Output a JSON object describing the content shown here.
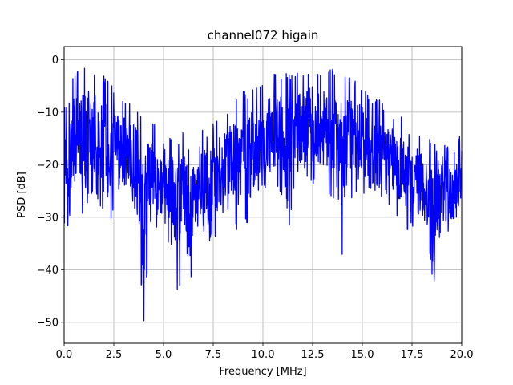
{
  "chart_data": {
    "type": "line",
    "title": "channel072 higain",
    "xlabel": "Frequency [MHz]",
    "ylabel": "PSD [dB]",
    "xlim": [
      0.0,
      20.0
    ],
    "ylim": [
      -54.0,
      2.5
    ],
    "grid": true,
    "series_color": "#0000ff",
    "x_ticks": [
      0.0,
      2.5,
      5.0,
      7.5,
      10.0,
      12.5,
      15.0,
      17.5,
      20.0
    ],
    "x_tick_labels": [
      "0.0",
      "2.5",
      "5.0",
      "7.5",
      "10.0",
      "12.5",
      "15.0",
      "17.5",
      "20.0"
    ],
    "y_ticks": [
      0,
      -10,
      -20,
      -30,
      -40,
      -50
    ],
    "y_tick_labels": [
      "0",
      "−10",
      "−20",
      "−30",
      "−40",
      "−50"
    ],
    "series": [
      {
        "x": [
          0.0,
          0.25,
          0.5,
          0.75,
          1.0,
          1.25,
          1.5,
          1.75,
          2.0,
          2.25,
          2.5,
          2.75,
          3.0,
          3.25,
          3.5,
          3.75,
          4.0,
          4.25,
          4.5,
          4.75,
          5.0,
          5.25,
          5.5,
          5.75,
          6.0,
          6.25,
          6.5,
          6.75,
          7.0,
          7.25,
          7.5,
          7.75,
          8.0,
          8.25,
          8.5,
          8.75,
          9.0,
          9.25,
          9.5,
          9.75,
          10.0,
          10.25,
          10.5,
          10.75,
          11.0,
          11.25,
          11.5,
          11.75,
          12.0,
          12.25,
          12.5,
          12.75,
          13.0,
          13.25,
          13.5,
          13.75,
          14.0,
          14.25,
          14.5,
          14.75,
          15.0,
          15.25,
          15.5,
          15.75,
          16.0,
          16.25,
          16.5,
          16.75,
          17.0,
          17.25,
          17.5,
          17.75,
          18.0,
          18.25,
          18.5,
          18.75,
          19.0,
          19.25,
          19.5,
          19.75,
          20.0
        ],
        "upper": [
          -9,
          -8,
          -2,
          -1.5,
          -1,
          -0.5,
          -2,
          -3,
          -3,
          -4,
          -5,
          -6,
          -7,
          -8,
          -8,
          -9,
          -10,
          -11,
          -12,
          -13,
          -13,
          -14,
          -15,
          -15,
          -13,
          -16,
          -14,
          -17,
          -12,
          -15,
          -12,
          -11,
          -10,
          -9,
          -8,
          -7,
          -6,
          -6,
          -5,
          -4,
          -4,
          -3.5,
          -3,
          -2,
          -3,
          -2.5,
          -3,
          -2,
          -2,
          -1.5,
          -1,
          -1.5,
          -2,
          -2.5,
          -1,
          -2,
          -3,
          -3,
          -4,
          -4,
          -5,
          -6,
          -7,
          -7,
          -8,
          -9,
          -10,
          -10,
          -11,
          -12,
          -14,
          -13,
          -14,
          -15,
          -15,
          -16,
          -15,
          -16,
          -18,
          -17,
          -12
        ],
        "lower": [
          -37,
          -30,
          -29,
          -25,
          -33,
          -25,
          -26,
          -27,
          -30,
          -34,
          -28,
          -32,
          -29,
          -27,
          -32,
          -35,
          -51,
          -37,
          -34,
          -38,
          -30,
          -36,
          -37,
          -47,
          -33,
          -46,
          -40,
          -31,
          -38,
          -35,
          -34,
          -33,
          -30,
          -29,
          -30,
          -34,
          -31,
          -33,
          -29,
          -27,
          -25,
          -26,
          -24,
          -25,
          -26,
          -35,
          -26,
          -27,
          -28,
          -23,
          -24,
          -25,
          -24,
          -26,
          -27,
          -24,
          -38,
          -29,
          -26,
          -27,
          -26,
          -28,
          -29,
          -30,
          -26,
          -30,
          -28,
          -31,
          -30,
          -33,
          -32,
          -33,
          -34,
          -36,
          -47,
          -37,
          -32,
          -38,
          -34,
          -33,
          -29
        ]
      }
    ]
  }
}
